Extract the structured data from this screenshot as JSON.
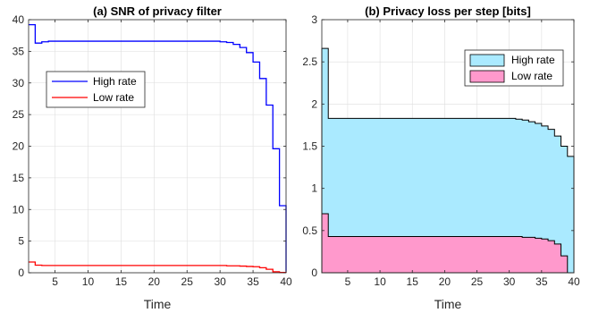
{
  "chart_data": [
    {
      "type": "line",
      "step": true,
      "title": "(a) SNR of privacy filter",
      "xlabel": "Time",
      "ylabel": "",
      "xlim": [
        1,
        40
      ],
      "ylim": [
        0,
        40
      ],
      "xticks": [
        5,
        10,
        15,
        20,
        25,
        30,
        35,
        40
      ],
      "yticks": [
        0,
        5,
        10,
        15,
        20,
        25,
        30,
        35,
        40
      ],
      "grid": true,
      "legend": "upper-left",
      "series": [
        {
          "name": "High rate",
          "color": "#0000ff",
          "x": [
            1,
            2,
            3,
            4,
            5,
            6,
            7,
            8,
            9,
            10,
            11,
            12,
            13,
            14,
            15,
            16,
            17,
            18,
            19,
            20,
            21,
            22,
            23,
            24,
            25,
            26,
            27,
            28,
            29,
            30,
            31,
            32,
            33,
            34,
            35,
            36,
            37,
            38,
            39,
            40
          ],
          "values": [
            39.2,
            36.3,
            36.5,
            36.6,
            36.6,
            36.6,
            36.6,
            36.6,
            36.6,
            36.6,
            36.6,
            36.6,
            36.6,
            36.6,
            36.6,
            36.6,
            36.6,
            36.6,
            36.6,
            36.6,
            36.6,
            36.6,
            36.6,
            36.6,
            36.6,
            36.6,
            36.6,
            36.6,
            36.6,
            36.5,
            36.4,
            36.1,
            35.6,
            34.8,
            33.3,
            30.7,
            26.5,
            19.6,
            10.6,
            0.2
          ]
        },
        {
          "name": "Low rate",
          "color": "#ff0000",
          "x": [
            1,
            2,
            3,
            4,
            5,
            6,
            7,
            8,
            9,
            10,
            11,
            12,
            13,
            14,
            15,
            16,
            17,
            18,
            19,
            20,
            21,
            22,
            23,
            24,
            25,
            26,
            27,
            28,
            29,
            30,
            31,
            32,
            33,
            34,
            35,
            36,
            37,
            38,
            39,
            40
          ],
          "values": [
            1.7,
            1.2,
            1.15,
            1.15,
            1.15,
            1.15,
            1.15,
            1.15,
            1.15,
            1.15,
            1.15,
            1.15,
            1.15,
            1.15,
            1.15,
            1.15,
            1.15,
            1.15,
            1.15,
            1.15,
            1.15,
            1.15,
            1.15,
            1.15,
            1.15,
            1.15,
            1.15,
            1.15,
            1.15,
            1.15,
            1.1,
            1.1,
            1.05,
            1.0,
            0.95,
            0.8,
            0.55,
            0.15,
            0.05,
            0.0
          ]
        }
      ]
    },
    {
      "type": "area",
      "step": true,
      "title": "(b) Privacy loss per step [bits]",
      "xlabel": "Time",
      "ylabel": "",
      "xlim": [
        1,
        40
      ],
      "ylim": [
        0,
        3
      ],
      "xticks": [
        5,
        10,
        15,
        20,
        25,
        30,
        35,
        40
      ],
      "yticks": [
        0,
        0.5,
        1,
        1.5,
        2,
        2.5,
        3
      ],
      "ytick_labels": [
        "0",
        "0.5",
        "1",
        "1.5",
        "2",
        "2.5",
        "3"
      ],
      "grid": true,
      "legend": "upper-right",
      "series": [
        {
          "name": "High rate",
          "color": "#aaeaff",
          "x": [
            1,
            2,
            3,
            4,
            5,
            6,
            7,
            8,
            9,
            10,
            11,
            12,
            13,
            14,
            15,
            16,
            17,
            18,
            19,
            20,
            21,
            22,
            23,
            24,
            25,
            26,
            27,
            28,
            29,
            30,
            31,
            32,
            33,
            34,
            35,
            36,
            37,
            38,
            39,
            40
          ],
          "values": [
            2.66,
            1.83,
            1.83,
            1.83,
            1.83,
            1.83,
            1.83,
            1.83,
            1.83,
            1.83,
            1.83,
            1.83,
            1.83,
            1.83,
            1.83,
            1.83,
            1.83,
            1.83,
            1.83,
            1.83,
            1.83,
            1.83,
            1.83,
            1.83,
            1.83,
            1.83,
            1.83,
            1.83,
            1.83,
            1.83,
            1.82,
            1.81,
            1.79,
            1.77,
            1.74,
            1.7,
            1.62,
            1.5,
            1.38,
            1.08
          ]
        },
        {
          "name": "Low rate",
          "color": "#ff99cc",
          "x": [
            1,
            2,
            3,
            4,
            5,
            6,
            7,
            8,
            9,
            10,
            11,
            12,
            13,
            14,
            15,
            16,
            17,
            18,
            19,
            20,
            21,
            22,
            23,
            24,
            25,
            26,
            27,
            28,
            29,
            30,
            31,
            32,
            33,
            34,
            35,
            36,
            37,
            38,
            39,
            40
          ],
          "values": [
            0.7,
            0.43,
            0.43,
            0.43,
            0.43,
            0.43,
            0.43,
            0.43,
            0.43,
            0.43,
            0.43,
            0.43,
            0.43,
            0.43,
            0.43,
            0.43,
            0.43,
            0.43,
            0.43,
            0.43,
            0.43,
            0.43,
            0.43,
            0.43,
            0.43,
            0.43,
            0.43,
            0.43,
            0.43,
            0.43,
            0.43,
            0.42,
            0.42,
            0.41,
            0.4,
            0.38,
            0.34,
            0.2,
            0.0,
            0.0
          ]
        }
      ]
    }
  ]
}
